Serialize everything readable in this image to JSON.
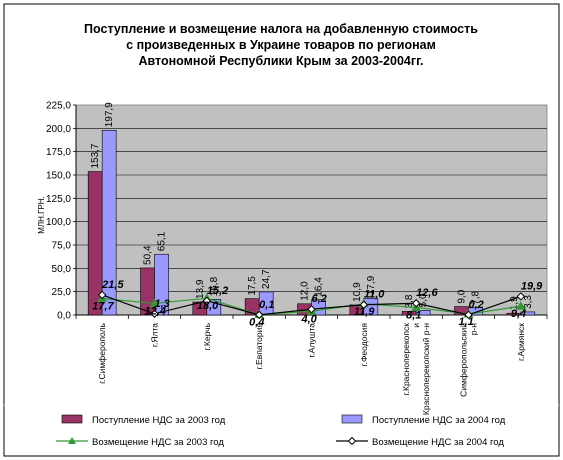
{
  "chart_data": {
    "type": "bar",
    "title": [
      "Поступление и возмещение налога на добавленную стоимость",
      "с произведенных в Украине товаров по регионам",
      "Автономной Республики Крым за 2003-2004гг."
    ],
    "ylabel": "МЛН.ГРН.",
    "ylim": [
      0,
      225
    ],
    "yticks": [
      "0,0",
      "25,0",
      "50,0",
      "75,0",
      "100,0",
      "125,0",
      "150,0",
      "175,0",
      "200,0",
      "225,0"
    ],
    "categories": [
      "г.Симферополь",
      "г.Ялта",
      "г.Керчь",
      "г.Евпатория",
      "г.Алушта",
      "г.Феодосия",
      "г.Красноперекопск и Красноперекопский р-н",
      "Симферопольский р-н",
      "г.Армянск"
    ],
    "series": [
      {
        "name": "Поступление НДС за 2003 год",
        "kind": "bar",
        "color": "#993366",
        "values": [
          153.7,
          50.4,
          13.9,
          17.5,
          12.0,
          10.9,
          3.8,
          9.0,
          1.9
        ],
        "labels": [
          "153,7",
          "50,4",
          "13,9",
          "17,5",
          "12,0",
          "10,9",
          "3,8",
          "9,0",
          "1,9"
        ]
      },
      {
        "name": "Поступление НДС за 2004 год",
        "kind": "bar",
        "color": "#9999ff",
        "values": [
          197.9,
          65.1,
          16.8,
          24.7,
          16.4,
          17.9,
          5.0,
          7.8,
          3.3
        ],
        "labels": [
          "197,9",
          "65,1",
          "16,8",
          "24,7",
          "16,4",
          "17,9",
          "5,0",
          "7,8",
          "3,3"
        ]
      },
      {
        "name": "Возмещение НДС за 2003 год",
        "kind": "line",
        "marker": "triangle",
        "color": "#339933",
        "values": [
          17.7,
          12.4,
          18.0,
          0.4,
          4.0,
          11.9,
          8.1,
          1.1,
          9.4
        ],
        "labels": [
          "17,7",
          "12,4",
          "18,0",
          "0,4",
          "4,0",
          "11,9",
          "8,1",
          "1,1",
          "9,4"
        ]
      },
      {
        "name": "Возмещение НДС за 2004 год",
        "kind": "line",
        "marker": "diamond",
        "color": "#000000",
        "values": [
          21.5,
          1.3,
          15.2,
          0.1,
          6.2,
          11.0,
          12.6,
          0.2,
          19.9
        ],
        "labels": [
          "21,5",
          "1,3",
          "15,2",
          "0,1",
          "6,2",
          "11,0",
          "12,6",
          "0,2",
          "19,9"
        ]
      }
    ],
    "grid": true,
    "legend": "bottom",
    "plot_background": "#c0c0c0"
  }
}
